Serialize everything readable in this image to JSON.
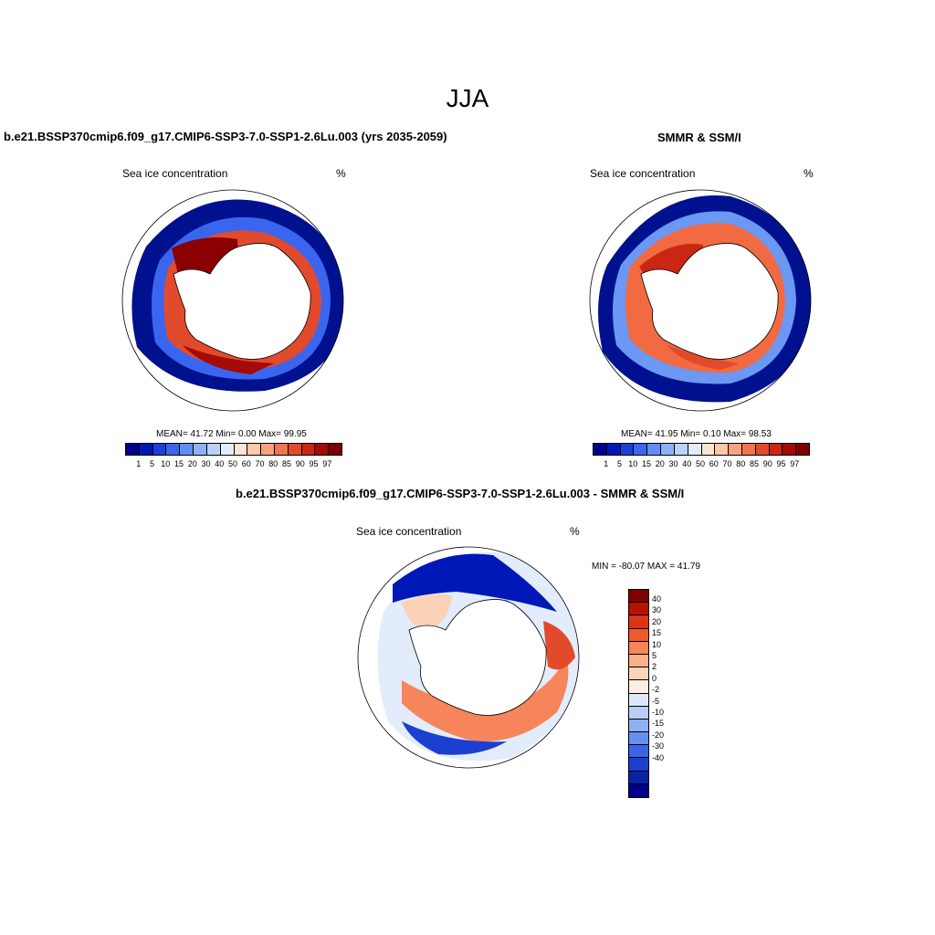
{
  "title": "JJA",
  "panels": [
    {
      "title": "b.e21.BSSP370cmip6.f09_g17.CMIP6-SSP3-7.0-SSP1-2.6Lu.003 (yrs 2035-2059)",
      "variable": "Sea ice concentration",
      "units": "%",
      "stats": "MEAN=  41.72  Min=   0.00  Max=  99.95"
    },
    {
      "title": "SMMR & SSM/I",
      "variable": "Sea ice concentration",
      "units": "%",
      "stats": "MEAN=  41.95  Min=   0.10  Max=  98.53"
    },
    {
      "title": "b.e21.BSSP370cmip6.f09_g17.CMIP6-SSP3-7.0-SSP1-2.6Lu.003 - SMMR & SSM/I",
      "variable": "Sea ice concentration",
      "units": "%",
      "stats": "MIN = -80.07 MAX =  41.79"
    }
  ],
  "colorbar_concentration": {
    "labels": [
      "1",
      "5",
      "10",
      "15",
      "20",
      "30",
      "40",
      "50",
      "60",
      "70",
      "80",
      "85",
      "90",
      "95",
      "97"
    ],
    "colors": [
      "#00008b",
      "#0018b8",
      "#1c3fd9",
      "#3a66ef",
      "#5f8ff5",
      "#8fb2f6",
      "#bcd1f7",
      "#e2ecfb",
      "#fde4d1",
      "#fbc8a8",
      "#f7a17e",
      "#f07450",
      "#e24a2c",
      "#c92714",
      "#a30b04",
      "#7f0000"
    ]
  },
  "colorbar_difference": {
    "labels": [
      "40",
      "30",
      "20",
      "15",
      "10",
      "5",
      "2",
      "0",
      "-2",
      "-5",
      "-10",
      "-15",
      "-20",
      "-30",
      "-40"
    ],
    "colors": [
      "#7f0000",
      "#b81206",
      "#dc3414",
      "#ef5a2f",
      "#f6855b",
      "#fab08a",
      "#fdd4b8",
      "#fdeee2",
      "#dce9f9",
      "#b9cdf5",
      "#8fb0f3",
      "#6590ef",
      "#3a66e6",
      "#1b40cf",
      "#0a22a8",
      "#00008b"
    ]
  }
}
